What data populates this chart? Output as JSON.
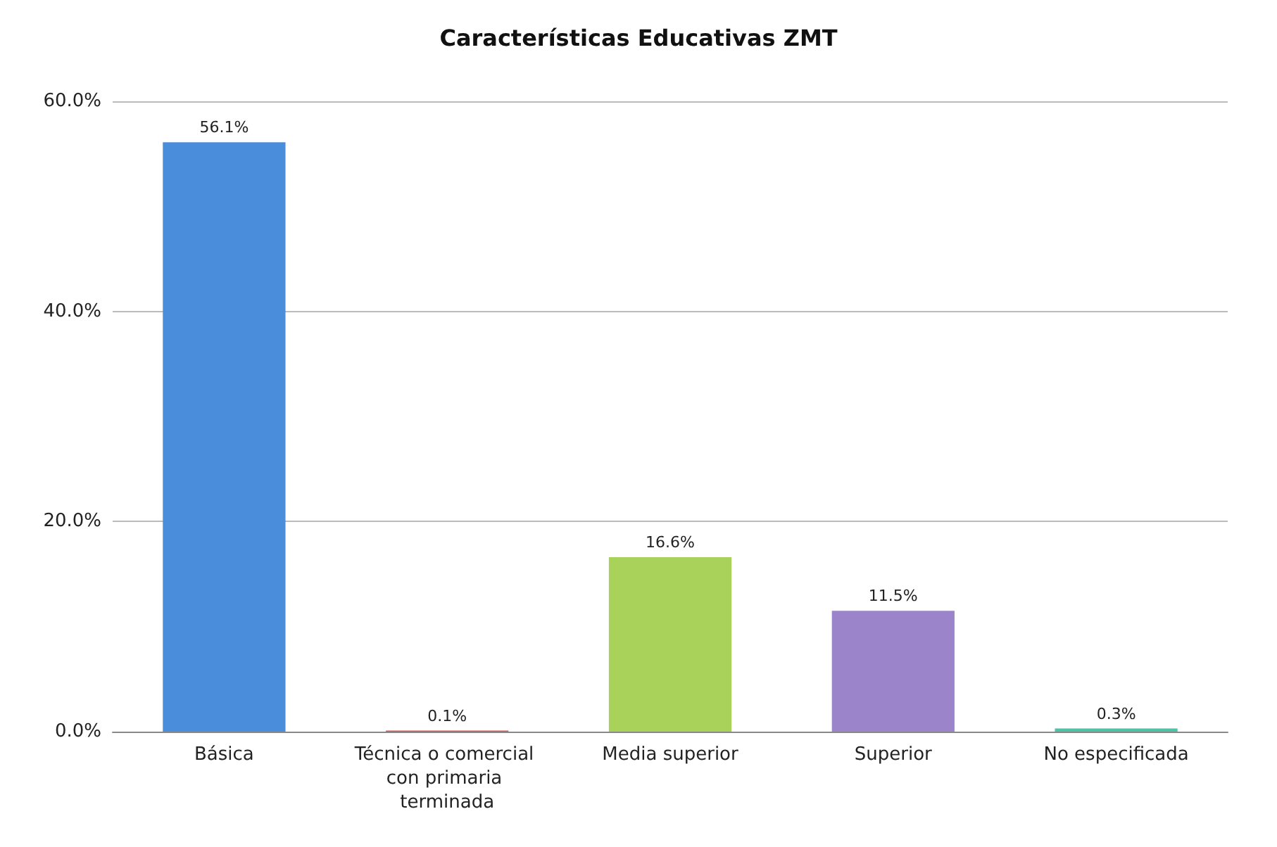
{
  "chart_data": {
    "type": "bar",
    "title": "Características Educativas ZMT",
    "categories": [
      "Básica",
      "Técnica o comercial con primaria terminada",
      "Media superior",
      "Superior",
      "No especificada"
    ],
    "values": [
      56.1,
      0.1,
      16.6,
      11.5,
      0.3
    ],
    "colors": [
      "#4a8edb",
      "#d9534f",
      "#a9d25a",
      "#9b84c9",
      "#4cc3a5"
    ],
    "value_labels": [
      "56.1%",
      "0.1%",
      "16.6%",
      "11.5%",
      "0.3%"
    ],
    "ylim": [
      0,
      60
    ],
    "yticks": [
      {
        "value": 0,
        "label": "0.0%"
      },
      {
        "value": 20,
        "label": "20.0%"
      },
      {
        "value": 40,
        "label": "40.0%"
      },
      {
        "value": 60,
        "label": "60.0%"
      }
    ],
    "grid": "y"
  }
}
